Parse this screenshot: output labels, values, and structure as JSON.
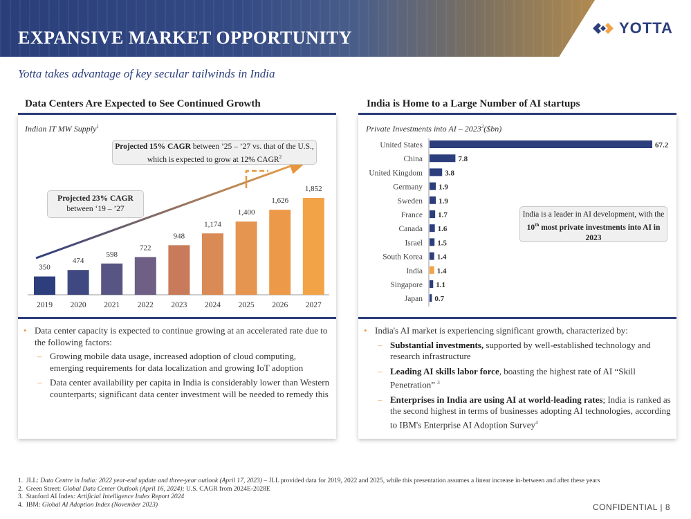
{
  "header": {
    "title": "EXPANSIVE MARKET OPPORTUNITY",
    "logo_text": "YOTTA"
  },
  "subtitle": "Yotta takes advantage of key secular tailwinds in India",
  "left": {
    "section_title": "Data Centers Are Expected to See Continued Growth",
    "chart_label": "Indian IT MW Supply",
    "chart_label_sup": "1",
    "callout_2327": {
      "bold": "Projected 23% CAGR",
      "rest": "between ‘19 – ’27"
    },
    "callout_15": {
      "bold": "Projected 15% CAGR",
      "rest": " between ’25 – ’27 vs. that of the U.S., which is expected to grow at 12% CAGR",
      "sup": "2"
    },
    "bullet_main": "Data center capacity is expected to continue growing at an accelerated rate due to the following factors:",
    "sub_bullets": [
      "Growing mobile data usage, increased adoption of cloud computing, emerging requirements for data localization and growing IoT adoption",
      "Data center availability per capita in India is considerably lower than Western counterparts; significant data center investment will be needed to remedy this"
    ]
  },
  "right": {
    "section_title": "India is Home to a Large Number of AI startups",
    "chart_label": "Private Investments into AI – 2023",
    "chart_label_sup": "3",
    "chart_label_unit": "($bn)",
    "callout": {
      "pre": "India is a leader in AI development, with the ",
      "bold1": "10",
      "bold1_sup": "th",
      "bold2": " most private investments into AI in 2023"
    },
    "bullet_main": "India's AI market is experiencing significant growth, characterized by:",
    "sub_bullets": [
      {
        "bold": "Substantial investments,",
        "rest": " supported by well-established technology and research infrastructure",
        "sup": ""
      },
      {
        "bold": "Leading AI skills labor force",
        "rest": ", boasting the highest rate of AI “Skill Penetration” ",
        "sup": "3"
      },
      {
        "bold": "Enterprises in India are using AI at world-leading rates",
        "rest": "; India is ranked as the second highest in terms of businesses adopting AI technologies, according to IBM's Enterprise AI Adoption Survey",
        "sup": "4"
      }
    ]
  },
  "chart_data": [
    {
      "type": "bar",
      "title": "Indian IT MW Supply",
      "categories": [
        "2019",
        "2020",
        "2021",
        "2022",
        "2023",
        "2024",
        "2025",
        "2026",
        "2027"
      ],
      "values": [
        350,
        474,
        598,
        722,
        948,
        1174,
        1400,
        1626,
        1852
      ],
      "value_labels": [
        "350",
        "474",
        "598",
        "722",
        "948",
        "1,174",
        "1,400",
        "1,626",
        "1,852"
      ],
      "ylim": [
        0,
        1852
      ],
      "colors": [
        "#2c3e7c",
        "#3f4880",
        "#585584",
        "#6f5f84",
        "#c87a5a",
        "#d98a55",
        "#e59550",
        "#ec9a4a",
        "#f2a348"
      ]
    },
    {
      "type": "bar",
      "orientation": "horizontal",
      "title": "Private Investments into AI – 2023 ($bn)",
      "categories": [
        "United States",
        "China",
        "United Kingdom",
        "Germany",
        "Sweden",
        "France",
        "Canada",
        "Israel",
        "South Korea",
        "India",
        "Singapore",
        "Japan"
      ],
      "values": [
        67.2,
        7.8,
        3.8,
        1.9,
        1.9,
        1.7,
        1.6,
        1.5,
        1.4,
        1.4,
        1.1,
        0.7
      ],
      "value_labels": [
        "67.2",
        "7.8",
        "3.8",
        "1.9",
        "1.9",
        "1.7",
        "1.6",
        "1.5",
        "1.4",
        "1.4",
        "1.1",
        "0.7"
      ],
      "highlight": "India",
      "bar_color": "#2c3e7c",
      "highlight_color": "#f2a348"
    }
  ],
  "footnotes": [
    {
      "num": "1.",
      "pre": "JLL: ",
      "ital": "Data Centre in India: 2022 year-end update and three-year outlook (April 17, 2023)",
      "post": " – JLL provided data for 2019, 2022 and 2025, while this presentation assumes a linear increase in-between and after these years"
    },
    {
      "num": "2.",
      "pre": "Green Street: ",
      "ital": "Global Data Center Outlook (April 16, 2024); ",
      "post": "U.S. CAGR from 2024E-2028E"
    },
    {
      "num": "3.",
      "pre": "Stanford AI Index: ",
      "ital": "Artificial Intelligence Index Report 2024",
      "post": ""
    },
    {
      "num": "4.",
      "pre": "IBM: ",
      "ital": "Global AI Adoption Index (November 2023)",
      "post": ""
    }
  ],
  "confidential": "CONFIDENTIAL  |  8"
}
